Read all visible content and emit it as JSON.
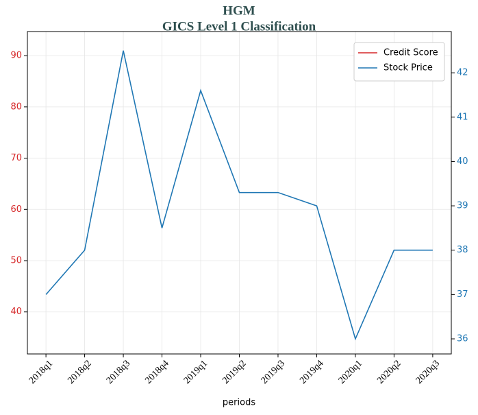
{
  "chart_data": {
    "type": "line",
    "title": "HGM",
    "subtitle": "GICS Level 1 Classification",
    "x_label": "periods",
    "categories": [
      "2018q1",
      "2018q2",
      "2018q3",
      "2018q4",
      "2019q1",
      "2019q2",
      "2019q3",
      "2019q4",
      "2020q1",
      "2020q2",
      "2020q3"
    ],
    "series": [
      {
        "name": "Credit Score",
        "color": "#d62728",
        "values": [
          null,
          null,
          null,
          null,
          null,
          null,
          null,
          null,
          null,
          null,
          null
        ]
      },
      {
        "name": "Stock Price",
        "color": "#1f77b4",
        "axis": "y2",
        "values": [
          37,
          38,
          42.5,
          38.5,
          41.6,
          39.3,
          39.3,
          39.0,
          36,
          38,
          38
        ]
      }
    ],
    "ylim": [
      31.8,
      94.7
    ],
    "yticks": [
      40,
      50,
      60,
      70,
      80,
      90
    ],
    "ycolor": "#d62728",
    "y2lim": [
      35.66,
      42.93
    ],
    "y2ticks": [
      36,
      37,
      38,
      39,
      40,
      41,
      42
    ],
    "y2color": "#1f77b4",
    "grid": true,
    "legend": "upper right"
  }
}
